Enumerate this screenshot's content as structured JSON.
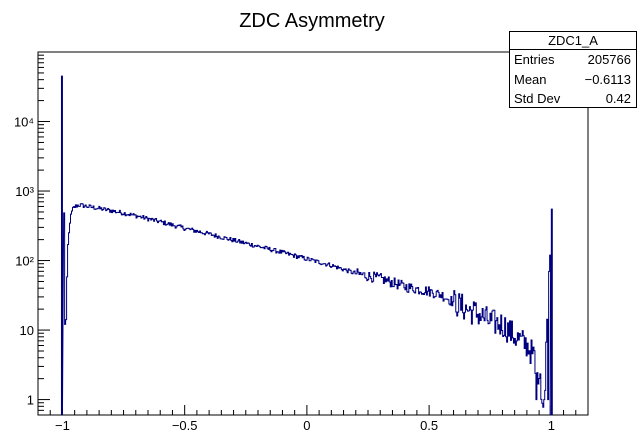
{
  "chart_data": {
    "type": "histogram",
    "title": "ZDC Asymmetry",
    "xlabel": "",
    "ylabel": "",
    "xlim": [
      -1.1,
      1.15
    ],
    "ylim": [
      0.6,
      100000
    ],
    "y_scale": "log",
    "x_ticks": [
      -1,
      -0.5,
      0,
      0.5,
      1
    ],
    "x_tick_labels": [
      "−1",
      "−0.5",
      "0",
      "0.5",
      "1"
    ],
    "y_ticks": [
      1,
      10,
      100,
      1000,
      10000
    ],
    "y_tick_labels": [
      "1",
      "10",
      "10²",
      "10³",
      "10⁴"
    ],
    "line_color": "#00007f",
    "series": [
      {
        "x": [
          -1.0,
          -0.99,
          -0.98,
          -0.97,
          -0.96,
          -0.95,
          -0.94,
          -0.93,
          -0.92,
          -0.9,
          -0.85,
          -0.8,
          -0.75,
          -0.7,
          -0.6,
          -0.5,
          -0.4,
          -0.3,
          -0.2,
          -0.1,
          0.0,
          0.1,
          0.2,
          0.3,
          0.4,
          0.5,
          0.55,
          0.6,
          0.65,
          0.7,
          0.75,
          0.8,
          0.85,
          0.9,
          0.93,
          0.95,
          0.97,
          1.0
        ],
        "y": [
          45000,
          5,
          150,
          400,
          550,
          600,
          620,
          630,
          620,
          600,
          560,
          520,
          480,
          440,
          360,
          290,
          240,
          195,
          160,
          130,
          105,
          85,
          65,
          55,
          42,
          36,
          32,
          25,
          20,
          17,
          13,
          12,
          8,
          6,
          4,
          2,
          1,
          550
        ]
      }
    ],
    "grid": false,
    "legend": "none"
  },
  "stats": {
    "name": "ZDC1_A",
    "rows": [
      {
        "label": "Entries",
        "value": "205766"
      },
      {
        "label": "Mean",
        "value": "−0.6113"
      },
      {
        "label": "Std Dev",
        "value": "0.42"
      }
    ]
  }
}
